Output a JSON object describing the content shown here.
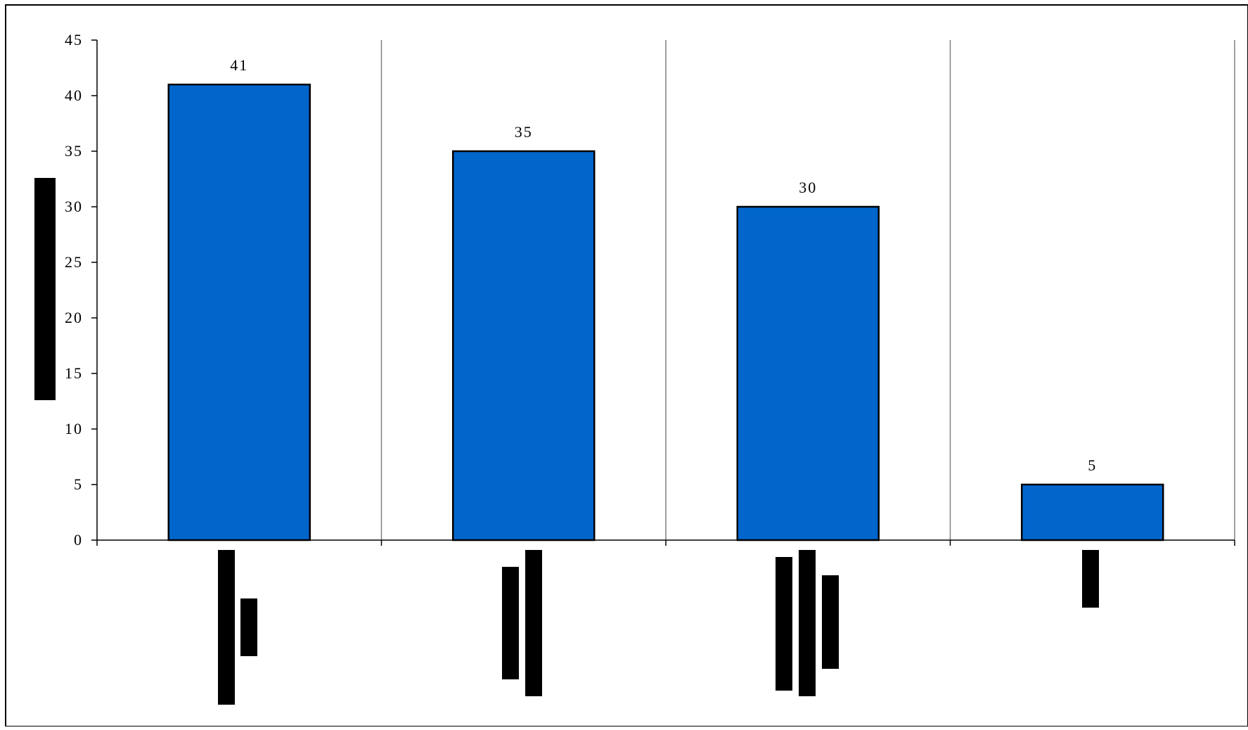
{
  "chart_data": {
    "type": "bar",
    "title": "",
    "xlabel": "",
    "ylabel": "",
    "categories": [
      "",
      "",
      "",
      ""
    ],
    "values": [
      41,
      35,
      30,
      5
    ],
    "data_labels": [
      "41",
      "35",
      "30",
      "5"
    ],
    "ylim": [
      0,
      45
    ],
    "yticks": [
      0,
      5,
      10,
      15,
      20,
      25,
      30,
      35,
      40,
      45
    ],
    "ytick_labels": [
      "0",
      "5",
      "10",
      "15",
      "20",
      "25",
      "30",
      "35",
      "40",
      "45"
    ],
    "grid": "vertical category separators",
    "legend": "none",
    "bar_color": "#0066CC",
    "bar_edge_color": "#000000",
    "redacted_labels_color": "#000000"
  }
}
